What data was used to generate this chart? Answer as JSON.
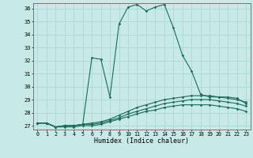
{
  "xlabel": "Humidex (Indice chaleur)",
  "background_color": "#c8eae6",
  "grid_color": "#a8d4ce",
  "line_color": "#1a6b5a",
  "x_values": [
    0,
    1,
    2,
    3,
    4,
    5,
    6,
    7,
    8,
    9,
    10,
    11,
    12,
    13,
    14,
    15,
    16,
    17,
    18,
    19,
    20,
    21,
    22,
    23
  ],
  "y_main": [
    27.2,
    27.2,
    26.9,
    27.0,
    27.0,
    27.1,
    32.2,
    32.1,
    29.2,
    34.8,
    36.1,
    36.3,
    35.8,
    36.1,
    36.3,
    34.5,
    32.4,
    31.2,
    29.4,
    29.2,
    29.2,
    29.2,
    29.1,
    28.7
  ],
  "y_line2": [
    27.2,
    27.2,
    26.9,
    27.0,
    27.0,
    27.1,
    27.2,
    27.3,
    27.5,
    27.8,
    28.1,
    28.4,
    28.6,
    28.8,
    29.0,
    29.1,
    29.2,
    29.3,
    29.3,
    29.3,
    29.2,
    29.1,
    29.0,
    28.8
  ],
  "y_line3": [
    27.2,
    27.2,
    26.9,
    27.0,
    27.0,
    27.1,
    27.1,
    27.2,
    27.4,
    27.6,
    27.9,
    28.1,
    28.3,
    28.5,
    28.7,
    28.8,
    28.9,
    29.0,
    29.0,
    29.0,
    28.9,
    28.8,
    28.7,
    28.5
  ],
  "y_line4": [
    27.2,
    27.2,
    26.9,
    26.9,
    26.9,
    27.0,
    27.0,
    27.1,
    27.3,
    27.5,
    27.7,
    27.9,
    28.1,
    28.2,
    28.4,
    28.5,
    28.6,
    28.6,
    28.6,
    28.6,
    28.5,
    28.4,
    28.3,
    28.1
  ],
  "ylim": [
    26.7,
    36.4
  ],
  "yticks": [
    27,
    28,
    29,
    30,
    31,
    32,
    33,
    34,
    35,
    36
  ],
  "xlim": [
    -0.5,
    23.5
  ],
  "xticks": [
    0,
    1,
    2,
    3,
    4,
    5,
    6,
    7,
    8,
    9,
    10,
    11,
    12,
    13,
    14,
    15,
    16,
    17,
    18,
    19,
    20,
    21,
    22,
    23
  ]
}
